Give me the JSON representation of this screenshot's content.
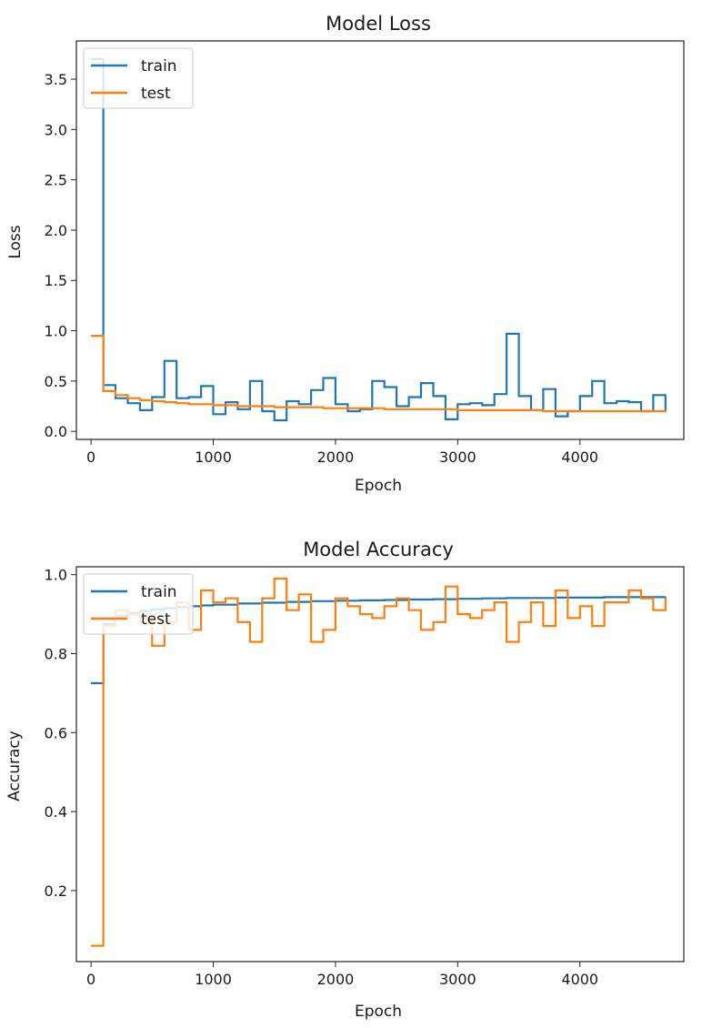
{
  "chart_data": [
    {
      "type": "line",
      "title": "Model Loss",
      "xlabel": "Epoch",
      "ylabel": "Loss",
      "xlim": [
        -120,
        4850
      ],
      "ylim": [
        -0.08,
        3.88
      ],
      "xticks": [
        0,
        1000,
        2000,
        3000,
        4000
      ],
      "xtick_labels": [
        "0",
        "1000",
        "2000",
        "3000",
        "4000"
      ],
      "yticks": [
        0.0,
        0.5,
        1.0,
        1.5,
        2.0,
        2.5,
        3.0,
        3.5
      ],
      "ytick_labels": [
        "0.0",
        "0.5",
        "1.0",
        "1.5",
        "2.0",
        "2.5",
        "3.0",
        "3.5"
      ],
      "legend": {
        "position": "top-left",
        "entries": [
          "train",
          "test"
        ]
      },
      "series": [
        {
          "name": "train",
          "color": "#1f77b4",
          "x": [
            0,
            100,
            100,
            200,
            300,
            400,
            500,
            600,
            700,
            800,
            900,
            1000,
            1100,
            1200,
            1300,
            1400,
            1500,
            1600,
            1700,
            1800,
            1900,
            2000,
            2100,
            2200,
            2300,
            2400,
            2500,
            2600,
            2700,
            2800,
            2900,
            3000,
            3100,
            3200,
            3300,
            3400,
            3500,
            3600,
            3700,
            3800,
            3900,
            4000,
            4100,
            4200,
            4300,
            4400,
            4500,
            4600,
            4700
          ],
          "y": [
            3.7,
            3.7,
            0.46,
            0.33,
            0.28,
            0.21,
            0.34,
            0.7,
            0.33,
            0.34,
            0.45,
            0.17,
            0.29,
            0.22,
            0.5,
            0.2,
            0.11,
            0.3,
            0.27,
            0.41,
            0.53,
            0.27,
            0.2,
            0.22,
            0.5,
            0.44,
            0.25,
            0.34,
            0.48,
            0.35,
            0.12,
            0.27,
            0.28,
            0.26,
            0.37,
            0.97,
            0.35,
            0.21,
            0.42,
            0.15,
            0.2,
            0.35,
            0.5,
            0.28,
            0.3,
            0.29,
            0.2,
            0.36,
            0.19
          ]
        },
        {
          "name": "test",
          "color": "#ff7f0e",
          "x": [
            0,
            100,
            100,
            200,
            300,
            400,
            500,
            600,
            700,
            800,
            900,
            1000,
            1100,
            1200,
            1300,
            1400,
            1500,
            1600,
            1700,
            1800,
            1900,
            2000,
            2100,
            2200,
            2300,
            2400,
            2500,
            2600,
            2700,
            2800,
            2900,
            3000,
            3100,
            3200,
            3300,
            3400,
            3500,
            3600,
            3700,
            3800,
            3900,
            4000,
            4100,
            4200,
            4300,
            4400,
            4500,
            4600,
            4700
          ],
          "y": [
            0.95,
            0.95,
            0.4,
            0.36,
            0.33,
            0.31,
            0.3,
            0.29,
            0.28,
            0.27,
            0.27,
            0.26,
            0.26,
            0.25,
            0.25,
            0.25,
            0.24,
            0.24,
            0.24,
            0.24,
            0.23,
            0.23,
            0.23,
            0.23,
            0.23,
            0.22,
            0.22,
            0.22,
            0.22,
            0.22,
            0.22,
            0.21,
            0.21,
            0.21,
            0.21,
            0.21,
            0.21,
            0.21,
            0.2,
            0.2,
            0.2,
            0.2,
            0.2,
            0.2,
            0.2,
            0.2,
            0.2,
            0.2,
            0.19
          ]
        }
      ]
    },
    {
      "type": "line",
      "title": "Model Accuracy",
      "xlabel": "Epoch",
      "ylabel": "Accuracy",
      "xlim": [
        -120,
        4850
      ],
      "ylim": [
        0.02,
        1.02
      ],
      "xticks": [
        0,
        1000,
        2000,
        3000,
        4000
      ],
      "xtick_labels": [
        "0",
        "1000",
        "2000",
        "3000",
        "4000"
      ],
      "yticks": [
        0.2,
        0.4,
        0.6,
        0.8,
        1.0
      ],
      "ytick_labels": [
        "0.2",
        "0.4",
        "0.6",
        "0.8",
        "1.0"
      ],
      "legend": {
        "position": "top-left",
        "entries": [
          "train",
          "test"
        ]
      },
      "series": [
        {
          "name": "train",
          "color": "#1f77b4",
          "x": [
            0,
            100,
            100,
            200,
            300,
            400,
            500,
            600,
            700,
            800,
            900,
            1000,
            1200,
            1400,
            1600,
            1800,
            2000,
            2200,
            2400,
            2600,
            2800,
            3000,
            3200,
            3400,
            3600,
            3800,
            4000,
            4200,
            4400,
            4700
          ],
          "y": [
            0.725,
            0.725,
            0.875,
            0.895,
            0.903,
            0.908,
            0.912,
            0.915,
            0.918,
            0.92,
            0.922,
            0.924,
            0.927,
            0.929,
            0.931,
            0.933,
            0.934,
            0.935,
            0.936,
            0.937,
            0.938,
            0.939,
            0.94,
            0.941,
            0.941,
            0.942,
            0.942,
            0.943,
            0.943,
            0.944
          ]
        },
        {
          "name": "test",
          "color": "#ff7f0e",
          "x": [
            0,
            100,
            100,
            200,
            300,
            400,
            500,
            600,
            700,
            800,
            900,
            1000,
            1100,
            1200,
            1300,
            1400,
            1500,
            1600,
            1700,
            1800,
            1900,
            2000,
            2100,
            2200,
            2300,
            2400,
            2500,
            2600,
            2700,
            2800,
            2900,
            3000,
            3100,
            3200,
            3300,
            3400,
            3500,
            3600,
            3700,
            3800,
            3900,
            4000,
            4100,
            4200,
            4300,
            4400,
            4500,
            4600,
            4700
          ],
          "y": [
            0.06,
            0.06,
            0.87,
            0.91,
            0.9,
            0.89,
            0.82,
            0.88,
            0.93,
            0.86,
            0.96,
            0.93,
            0.94,
            0.88,
            0.83,
            0.94,
            0.99,
            0.91,
            0.95,
            0.83,
            0.86,
            0.94,
            0.92,
            0.9,
            0.89,
            0.92,
            0.94,
            0.91,
            0.86,
            0.88,
            0.97,
            0.9,
            0.89,
            0.91,
            0.93,
            0.83,
            0.88,
            0.93,
            0.87,
            0.96,
            0.89,
            0.92,
            0.87,
            0.93,
            0.93,
            0.96,
            0.94,
            0.91,
            0.94
          ]
        }
      ]
    }
  ]
}
